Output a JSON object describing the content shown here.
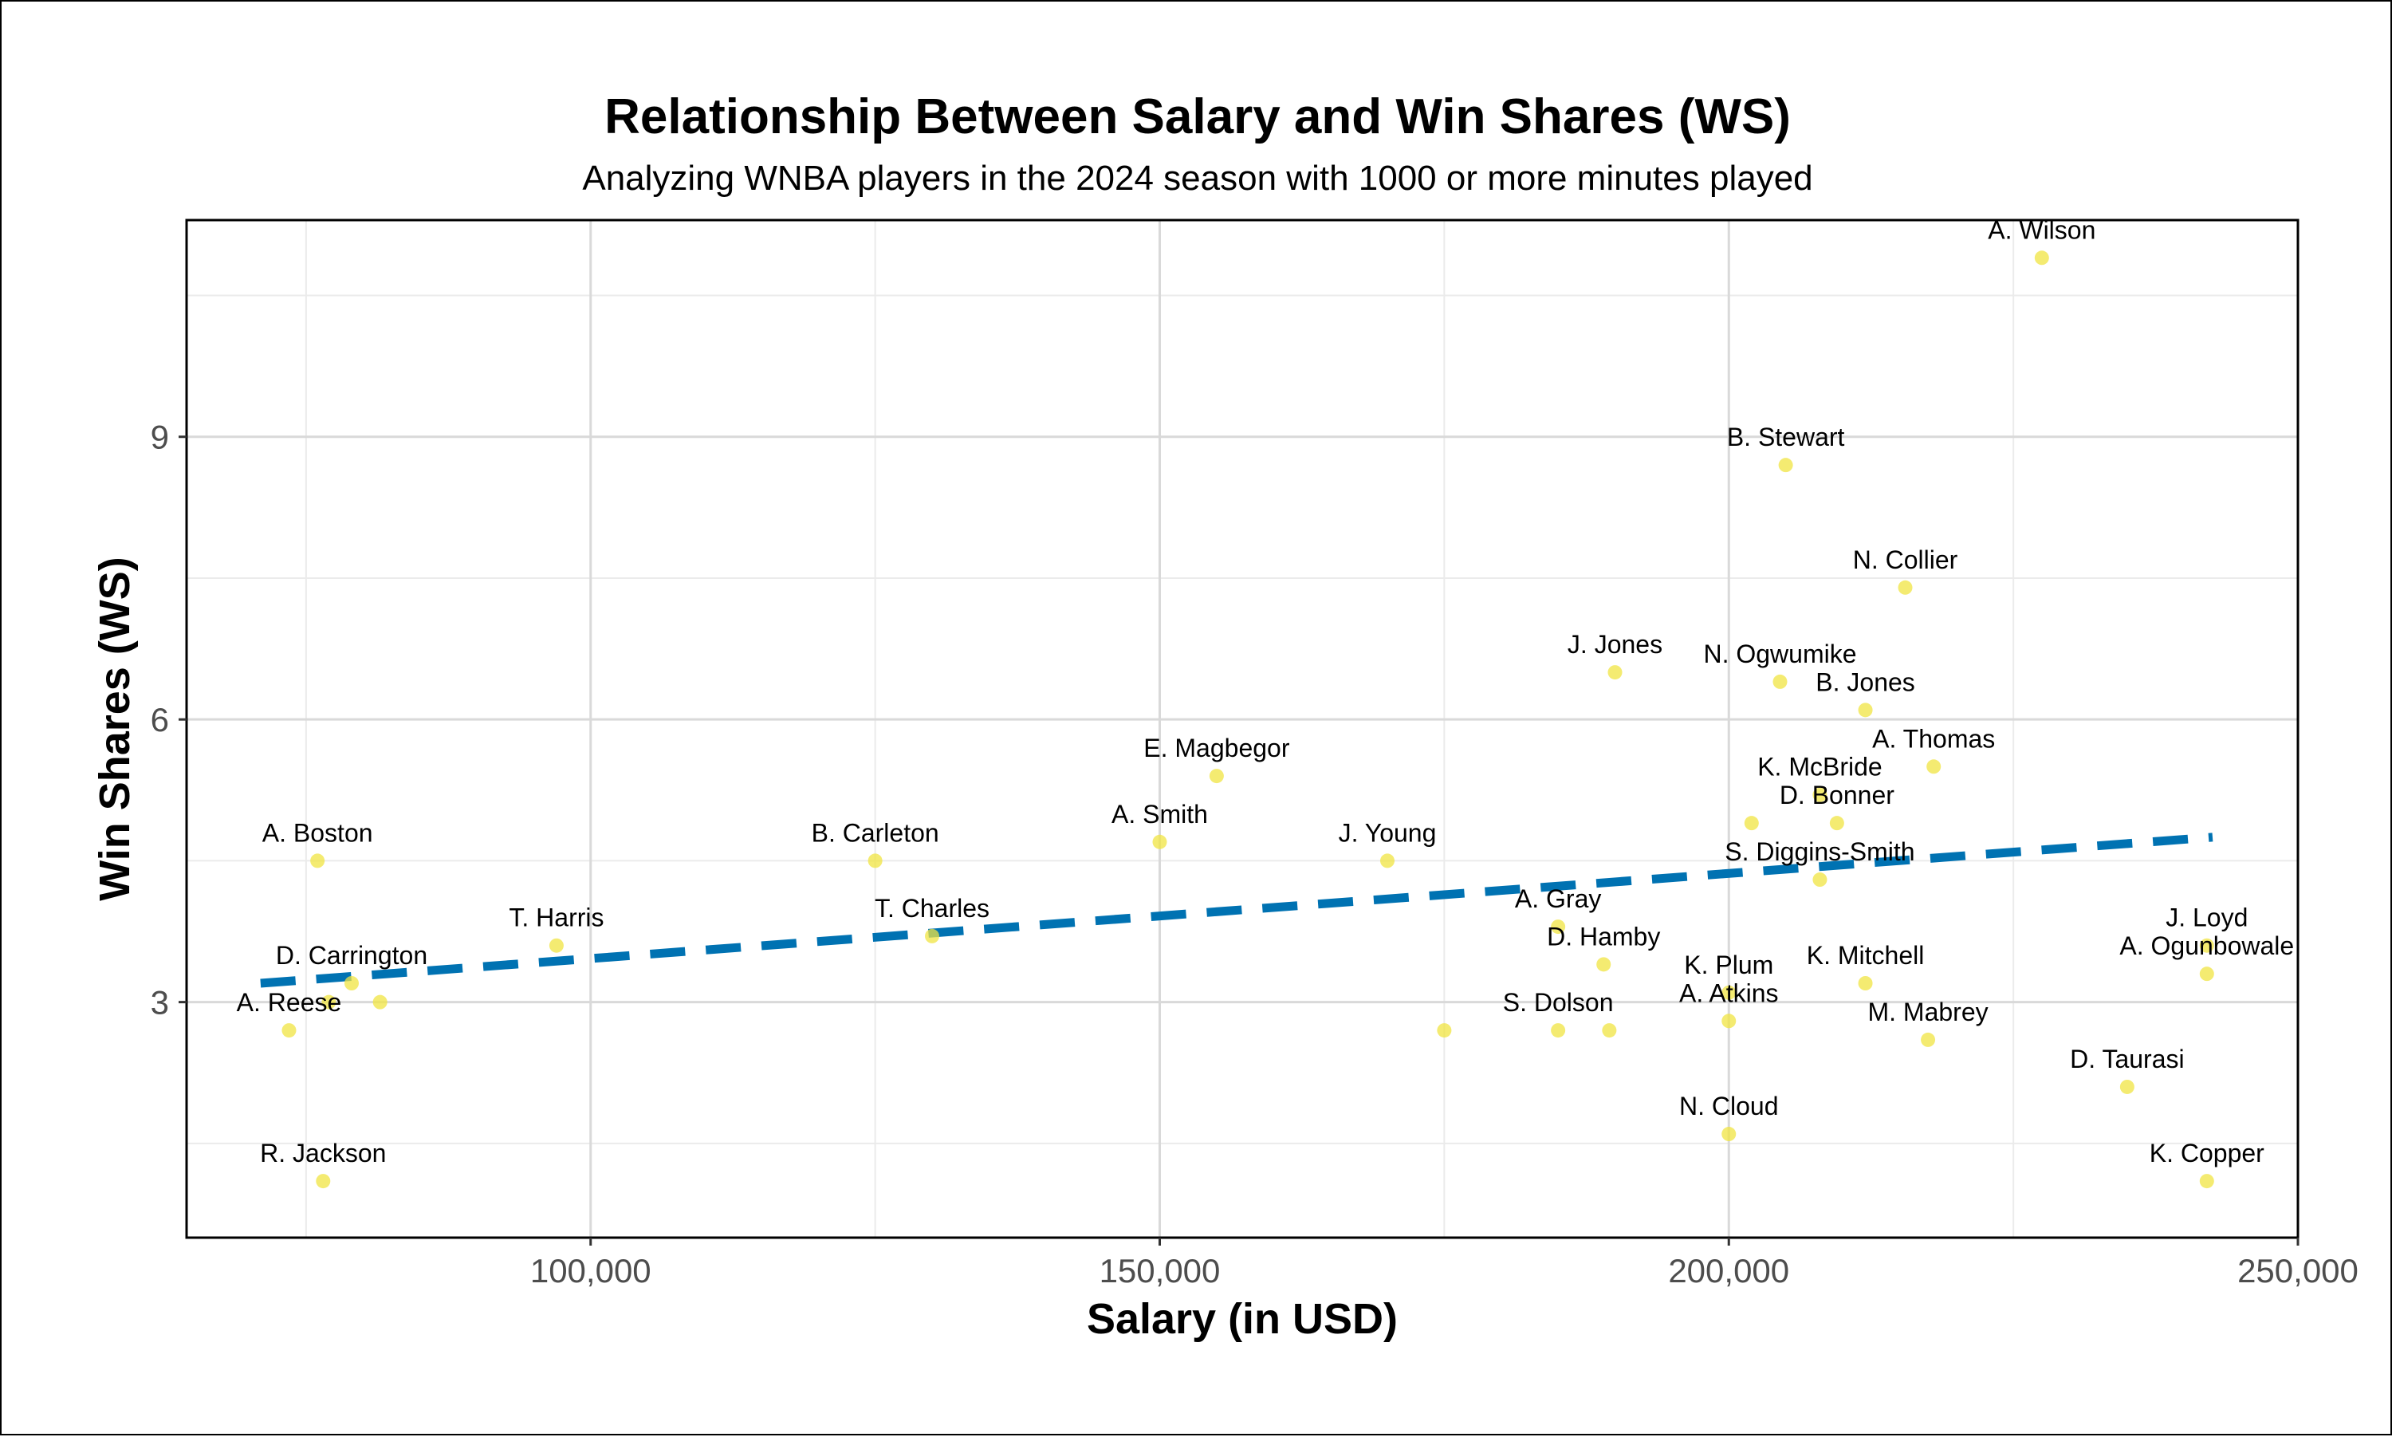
{
  "chart_data": {
    "type": "scatter",
    "title": "Relationship Between Salary and Win Shares (WS)",
    "subtitle": "Analyzing WNBA players in the 2024 season with 1000 or more minutes played",
    "xlabel": "Salary (in USD)",
    "ylabel": "Win Shares (WS)",
    "xlim": [
      64500,
      250000
    ],
    "ylim": [
      0.5,
      11.3
    ],
    "x_ticks": [
      100000,
      150000,
      200000,
      250000
    ],
    "x_tick_labels": [
      "100,000",
      "150,000",
      "200,000",
      "250,000"
    ],
    "y_ticks": [
      3,
      6,
      9
    ],
    "y_tick_labels": [
      "3",
      "6",
      "9"
    ],
    "grid": true,
    "point_color": "#f0e442",
    "trend_color": "#0072b2",
    "trendline": {
      "x": [
        71000,
        242500
      ],
      "y": [
        3.2,
        4.75
      ]
    },
    "points": [
      {
        "label": "A. Wilson",
        "x": 227500,
        "y": 10.9
      },
      {
        "label": "B. Stewart",
        "x": 205000,
        "y": 8.7
      },
      {
        "label": "N. Collier",
        "x": 215500,
        "y": 7.4
      },
      {
        "label": "J. Jones",
        "x": 190000,
        "y": 6.5
      },
      {
        "label": "N. Ogwumike",
        "x": 204500,
        "y": 6.4
      },
      {
        "label": "B. Jones",
        "x": 212000,
        "y": 6.1
      },
      {
        "label": "A. Thomas",
        "x": 218000,
        "y": 5.5
      },
      {
        "label": "E. Magbegor",
        "x": 155000,
        "y": 5.4
      },
      {
        "label": "K. McBride",
        "x": 208000,
        "y": 5.2
      },
      {
        "label": "D. Bonner",
        "x": 209500,
        "y": 4.9
      },
      {
        "label": "",
        "x": 202000,
        "y": 4.9
      },
      {
        "label": "A. Smith",
        "x": 150000,
        "y": 4.7
      },
      {
        "label": "A. Boston",
        "x": 76000,
        "y": 4.5
      },
      {
        "label": "B. Carleton",
        "x": 125000,
        "y": 4.5
      },
      {
        "label": "J. Young",
        "x": 170000,
        "y": 4.5
      },
      {
        "label": "S. Diggins-Smith",
        "x": 208000,
        "y": 4.3
      },
      {
        "label": "A. Gray",
        "x": 185000,
        "y": 3.8
      },
      {
        "label": "T. Charles",
        "x": 130000,
        "y": 3.7
      },
      {
        "label": "T. Harris",
        "x": 97000,
        "y": 3.6
      },
      {
        "label": "J. Loyd",
        "x": 242000,
        "y": 3.6
      },
      {
        "label": "D. Hamby",
        "x": 189000,
        "y": 3.4
      },
      {
        "label": "A. Ogunbowale",
        "x": 242000,
        "y": 3.3
      },
      {
        "label": "D. Carrington",
        "x": 79000,
        "y": 3.2
      },
      {
        "label": "K. Mitchell",
        "x": 212000,
        "y": 3.2
      },
      {
        "label": "K. Plum",
        "x": 200000,
        "y": 3.1
      },
      {
        "label": "",
        "x": 81500,
        "y": 3.0
      },
      {
        "label": "",
        "x": 77000,
        "y": 3.0
      },
      {
        "label": "A. Atkins",
        "x": 200000,
        "y": 2.8
      },
      {
        "label": "A. Reese",
        "x": 73500,
        "y": 2.7
      },
      {
        "label": "",
        "x": 175000,
        "y": 2.7
      },
      {
        "label": "S. Dolson",
        "x": 185000,
        "y": 2.7
      },
      {
        "label": "",
        "x": 189500,
        "y": 2.7
      },
      {
        "label": "M. Mabrey",
        "x": 217500,
        "y": 2.6
      },
      {
        "label": "D. Taurasi",
        "x": 235000,
        "y": 2.1
      },
      {
        "label": "N. Cloud",
        "x": 200000,
        "y": 1.6
      },
      {
        "label": "R. Jackson",
        "x": 76500,
        "y": 1.1
      },
      {
        "label": "K. Copper",
        "x": 242000,
        "y": 1.1
      }
    ]
  }
}
